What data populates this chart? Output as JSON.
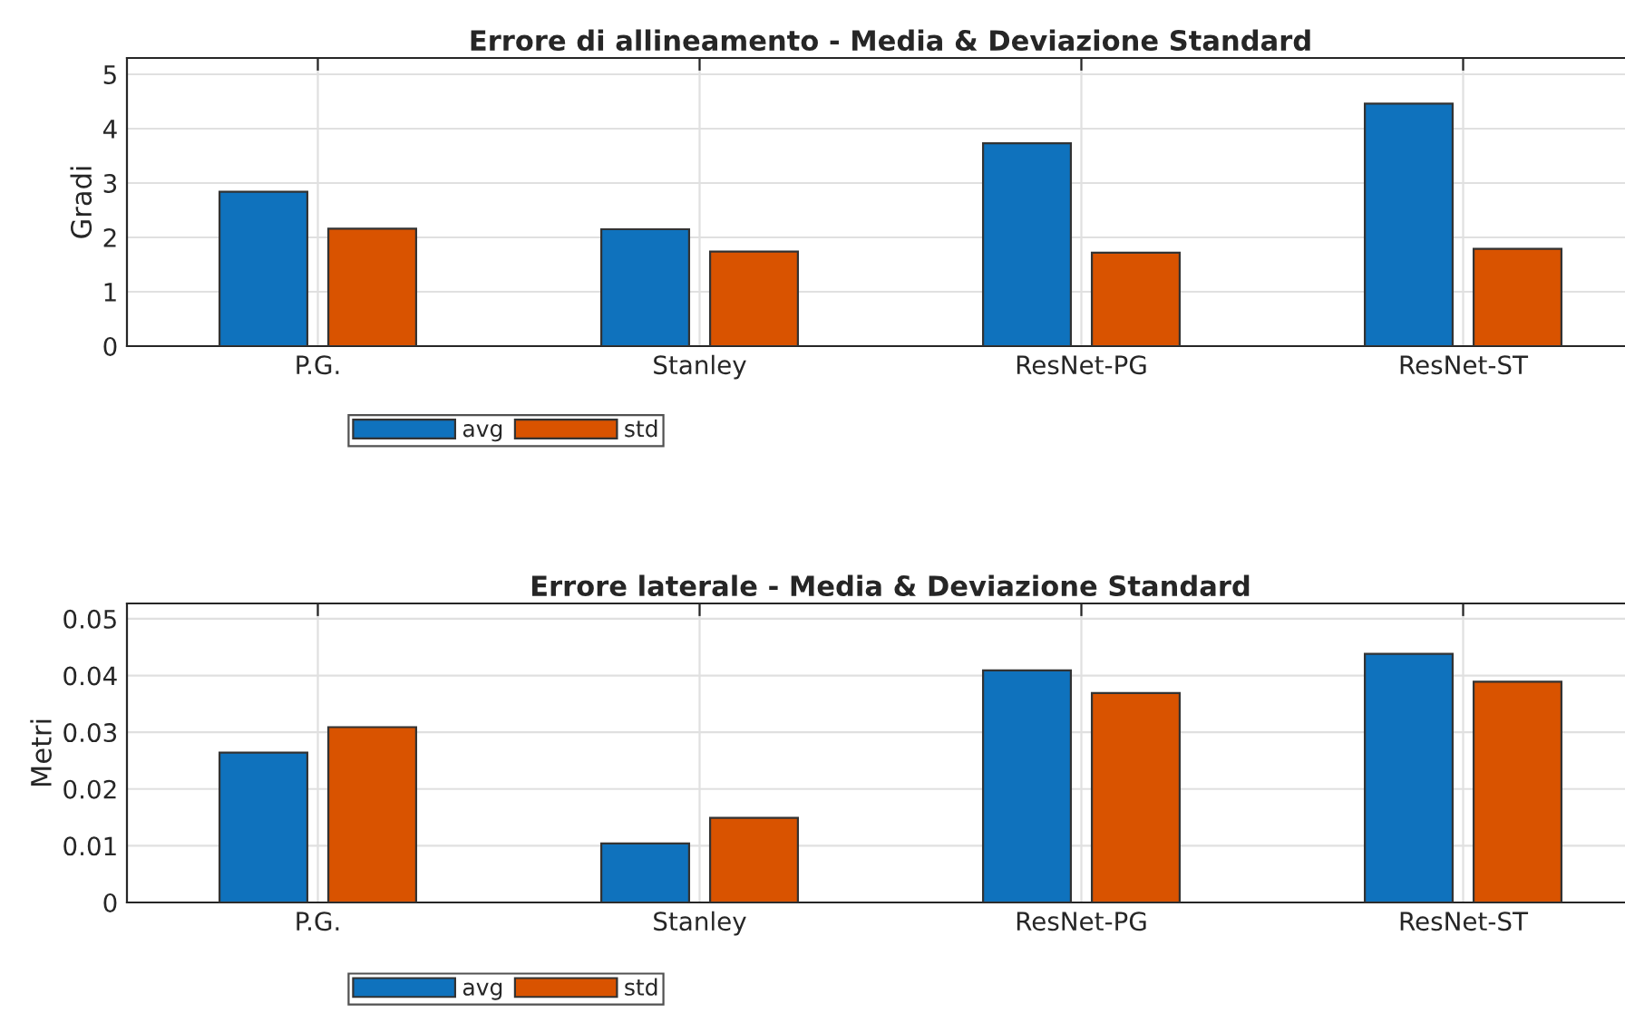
{
  "chart_data": [
    {
      "type": "bar",
      "title": "Errore di allineamento - Media & Deviazione Standard",
      "ylabel": "Gradi",
      "categories": [
        "P.G.",
        "Stanley",
        "ResNet-PG",
        "ResNet-ST"
      ],
      "series": [
        {
          "name": "avg",
          "color": "#0f72bd",
          "values": [
            2.84,
            2.15,
            3.73,
            4.46
          ]
        },
        {
          "name": "std",
          "color": "#d95300",
          "values": [
            2.16,
            1.74,
            1.72,
            1.79
          ]
        }
      ],
      "ylim": [
        0,
        5.3
      ],
      "yticks": [
        0,
        1,
        2,
        3,
        4,
        5
      ],
      "grid": true,
      "legend": "bottom"
    },
    {
      "type": "bar",
      "title": "Errore laterale - Media & Deviazione Standard",
      "ylabel": "Metri",
      "categories": [
        "P.G.",
        "Stanley",
        "ResNet-PG",
        "ResNet-ST"
      ],
      "series": [
        {
          "name": "avg",
          "color": "#0f72bd",
          "values": [
            0.0264,
            0.0104,
            0.0409,
            0.0438
          ]
        },
        {
          "name": "std",
          "color": "#d95300",
          "values": [
            0.0309,
            0.0149,
            0.0369,
            0.0389
          ]
        }
      ],
      "ylim": [
        0,
        0.0527
      ],
      "yticks": [
        0,
        0.01,
        0.02,
        0.03,
        0.04,
        0.05
      ],
      "grid": true,
      "legend": "bottom"
    }
  ]
}
